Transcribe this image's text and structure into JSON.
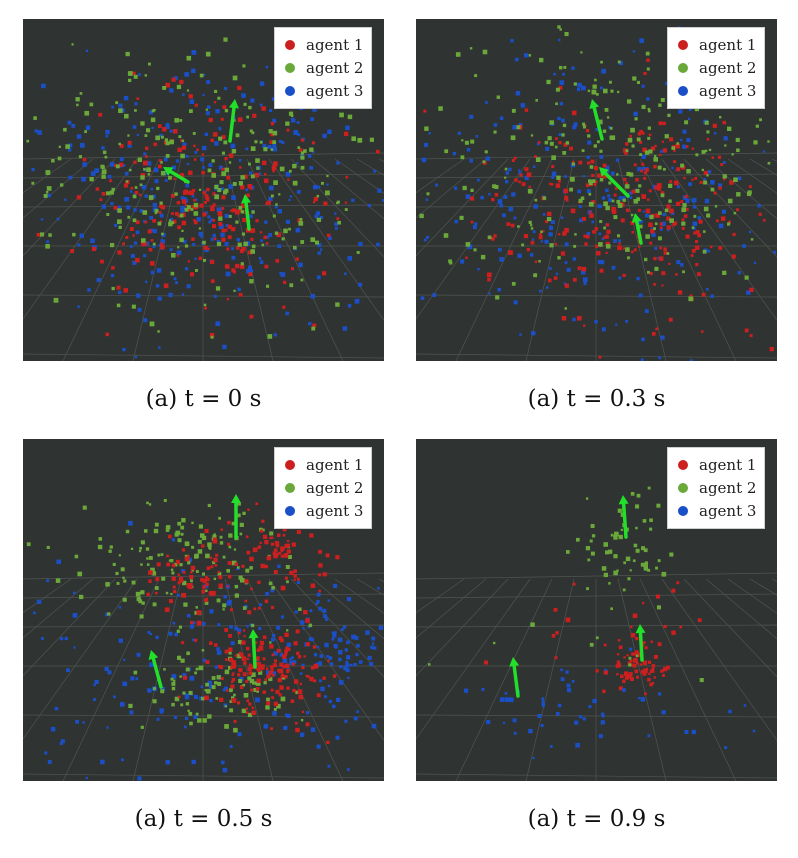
{
  "legend": {
    "entries": [
      {
        "label": "agent 1",
        "color": "#cc1f1f"
      },
      {
        "label": "agent 2",
        "color": "#6aa83a"
      },
      {
        "label": "agent 3",
        "color": "#1a4fc7"
      }
    ]
  },
  "arrow_color": "#22e02a",
  "panels": [
    {
      "caption": "(a) t = 0 s"
    },
    {
      "caption": "(a) t = 0.3 s"
    },
    {
      "caption": "(a) t = 0.5 s"
    },
    {
      "caption": "(a) t = 0.9 s"
    }
  ]
}
